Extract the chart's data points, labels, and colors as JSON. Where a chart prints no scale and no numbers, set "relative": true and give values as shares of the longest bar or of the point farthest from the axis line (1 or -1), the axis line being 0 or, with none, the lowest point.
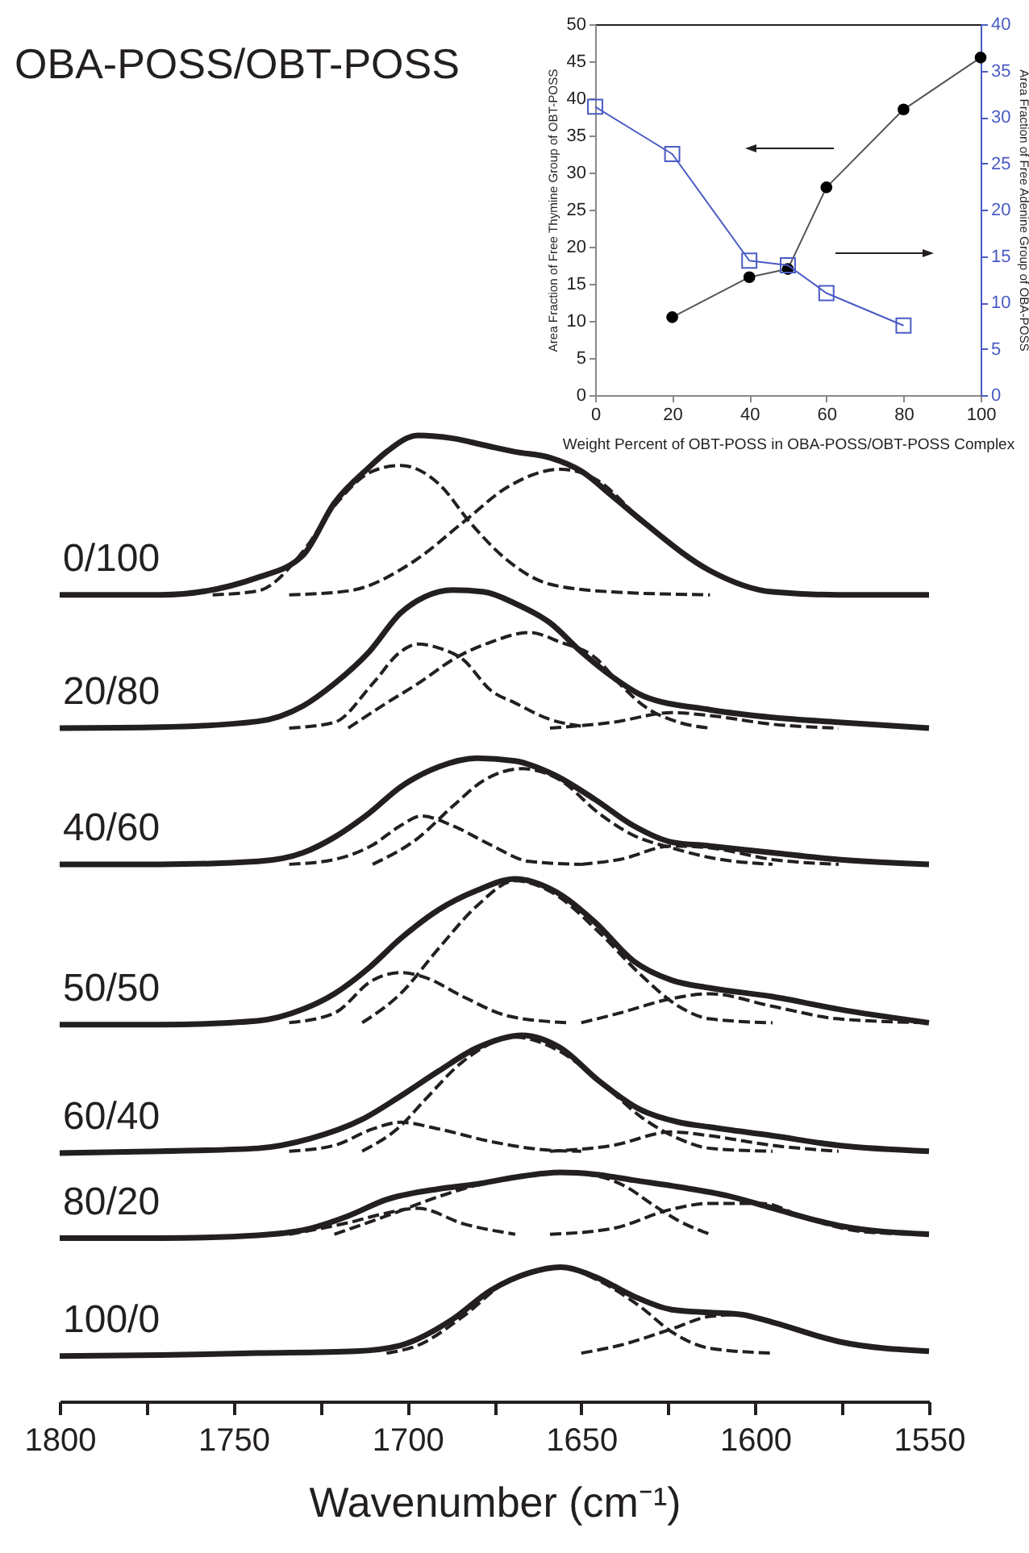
{
  "chart_data": [
    {
      "type": "line",
      "title": "OBA-POSS/OBT-POSS",
      "xlabel": "Wavenumber (cm⁻¹)",
      "relative": true,
      "xlim": [
        1800,
        1550
      ],
      "xticks": [
        1800,
        {
          "value": 1775,
          "label": null
        },
        1750,
        {
          "value": 1725,
          "label": null
        },
        1700,
        {
          "value": 1675,
          "label": null
        },
        1650,
        {
          "value": 1625,
          "label": null
        },
        1600,
        {
          "value": 1575,
          "label": null
        },
        1550
      ],
      "series": [
        {
          "name": "0/100",
          "color": "#231f20",
          "line_style": "solid",
          "x": [
            1800,
            1771,
            1743,
            1730,
            1721,
            1711,
            1706,
            1697,
            1687,
            1678,
            1669,
            1659,
            1650,
            1641,
            1632,
            1613,
            1595,
            1576,
            1550
          ],
          "values": [
            0.835,
            0.835,
            0.853,
            0.876,
            0.93,
            0.967,
            0.983,
            1,
            0.997,
            0.99,
            0.983,
            0.977,
            0.963,
            0.937,
            0.91,
            0.86,
            0.838,
            0.835,
            0.835
          ]
        },
        {
          "color": "#231f20",
          "line_style": "dashed",
          "x": [
            1756,
            1743,
            1730,
            1721,
            1710,
            1702,
            1691,
            1682,
            1672,
            1659,
            1641,
            1613
          ],
          "values": [
            0.835,
            0.839,
            0.88,
            0.927,
            0.963,
            0.969,
            0.95,
            0.91,
            0.873,
            0.846,
            0.838,
            0.835
          ]
        },
        {
          "color": "#231f20",
          "line_style": "dashed",
          "x": [
            1734,
            1717,
            1698,
            1684,
            1671,
            1656,
            1646,
            1632,
            1613,
            1595,
            1576
          ],
          "values": [
            0.835,
            0.839,
            0.87,
            0.91,
            0.947,
            0.965,
            0.955,
            0.91,
            0.86,
            0.838,
            0.835
          ]
        },
        {
          "name": "20/80",
          "color": "#231f20",
          "line_style": "solid",
          "x": [
            1800,
            1771,
            1743,
            1730,
            1721,
            1711,
            1702,
            1695,
            1687,
            1678,
            1669,
            1659,
            1650,
            1641,
            1632,
            1613,
            1595,
            1576,
            1550
          ],
          "values": [
            0.697,
            0.698,
            0.704,
            0.72,
            0.743,
            0.776,
            0.816,
            0.833,
            0.84,
            0.838,
            0.826,
            0.806,
            0.776,
            0.75,
            0.73,
            0.716,
            0.708,
            0.703,
            0.697
          ]
        },
        {
          "color": "#231f20",
          "line_style": "dashed",
          "x": [
            1734,
            1721,
            1710,
            1702,
            1697,
            1691,
            1684,
            1676,
            1669,
            1659,
            1650
          ],
          "values": [
            0.697,
            0.703,
            0.743,
            0.776,
            0.784,
            0.78,
            0.768,
            0.736,
            0.723,
            0.706,
            0.699
          ]
        },
        {
          "color": "#231f20",
          "line_style": "dashed",
          "x": [
            1717,
            1706,
            1697,
            1686,
            1676,
            1665,
            1656,
            1646,
            1639,
            1632,
            1622,
            1613
          ],
          "values": [
            0.697,
            0.723,
            0.743,
            0.77,
            0.786,
            0.796,
            0.786,
            0.77,
            0.743,
            0.72,
            0.703,
            0.697
          ]
        },
        {
          "color": "#231f20",
          "line_style": "dashed",
          "x": [
            1659,
            1641,
            1624,
            1613,
            1595,
            1576
          ],
          "values": [
            0.697,
            0.703,
            0.713,
            0.71,
            0.701,
            0.697
          ]
        },
        {
          "name": "40/60",
          "color": "#231f20",
          "line_style": "solid",
          "x": [
            1800,
            1771,
            1743,
            1730,
            1721,
            1711,
            1702,
            1691,
            1680,
            1669,
            1658,
            1646,
            1635,
            1624,
            1613,
            1595,
            1576,
            1550
          ],
          "values": [
            0.556,
            0.556,
            0.559,
            0.568,
            0.584,
            0.609,
            0.636,
            0.657,
            0.666,
            0.663,
            0.649,
            0.623,
            0.596,
            0.579,
            0.575,
            0.568,
            0.561,
            0.556
          ]
        },
        {
          "color": "#231f20",
          "line_style": "dashed",
          "x": [
            1734,
            1721,
            1710,
            1702,
            1696,
            1687,
            1676,
            1665,
            1650
          ],
          "values": [
            0.556,
            0.561,
            0.576,
            0.596,
            0.606,
            0.596,
            0.576,
            0.559,
            0.556
          ]
        },
        {
          "color": "#231f20",
          "line_style": "dashed",
          "x": [
            1710,
            1697,
            1687,
            1678,
            1667,
            1656,
            1645,
            1635,
            1624,
            1613,
            1595
          ],
          "values": [
            0.556,
            0.583,
            0.616,
            0.643,
            0.655,
            0.643,
            0.609,
            0.586,
            0.573,
            0.563,
            0.556
          ]
        },
        {
          "color": "#231f20",
          "line_style": "dashed",
          "x": [
            1650,
            1639,
            1624,
            1613,
            1595,
            1576
          ],
          "values": [
            0.556,
            0.561,
            0.575,
            0.573,
            0.561,
            0.556
          ]
        },
        {
          "name": "50/50",
          "color": "#231f20",
          "line_style": "solid",
          "x": [
            1800,
            1771,
            1743,
            1730,
            1721,
            1711,
            1702,
            1691,
            1680,
            1669,
            1658,
            1646,
            1635,
            1624,
            1613,
            1595,
            1576,
            1550
          ],
          "values": [
            0.39,
            0.39,
            0.394,
            0.406,
            0.422,
            0.449,
            0.479,
            0.509,
            0.529,
            0.541,
            0.529,
            0.496,
            0.456,
            0.436,
            0.428,
            0.419,
            0.406,
            0.392
          ]
        },
        {
          "color": "#231f20",
          "line_style": "dashed",
          "x": [
            1734,
            1721,
            1710,
            1702,
            1695,
            1684,
            1671,
            1654
          ],
          "values": [
            0.392,
            0.402,
            0.436,
            0.444,
            0.439,
            0.419,
            0.399,
            0.392
          ]
        },
        {
          "color": "#231f20",
          "line_style": "dashed",
          "x": [
            1713,
            1702,
            1691,
            1680,
            1669,
            1658,
            1645,
            1633,
            1622,
            1613,
            1595
          ],
          "values": [
            0.392,
            0.422,
            0.469,
            0.513,
            0.539,
            0.526,
            0.486,
            0.442,
            0.409,
            0.396,
            0.392
          ]
        },
        {
          "color": "#231f20",
          "line_style": "dashed",
          "x": [
            1650,
            1639,
            1624,
            1613,
            1595,
            1576,
            1550
          ],
          "values": [
            0.392,
            0.402,
            0.417,
            0.422,
            0.409,
            0.396,
            0.392
          ]
        },
        {
          "name": "60/40",
          "color": "#231f20",
          "line_style": "solid",
          "x": [
            1800,
            1771,
            1743,
            1728,
            1713,
            1702,
            1691,
            1680,
            1667,
            1656,
            1645,
            1633,
            1622,
            1613,
            1595,
            1576,
            1550
          ],
          "values": [
            0.257,
            0.259,
            0.262,
            0.272,
            0.292,
            0.316,
            0.342,
            0.366,
            0.379,
            0.366,
            0.332,
            0.302,
            0.289,
            0.284,
            0.275,
            0.265,
            0.259
          ]
        },
        {
          "color": "#231f20",
          "line_style": "dashed",
          "x": [
            1734,
            1721,
            1710,
            1702,
            1691,
            1676,
            1659,
            1650
          ],
          "values": [
            0.259,
            0.265,
            0.282,
            0.289,
            0.282,
            0.269,
            0.26,
            0.259
          ]
        },
        {
          "color": "#231f20",
          "line_style": "dashed",
          "x": [
            1713,
            1702,
            1695,
            1684,
            1669,
            1656,
            1643,
            1633,
            1622,
            1613,
            1595
          ],
          "values": [
            0.259,
            0.285,
            0.312,
            0.352,
            0.377,
            0.362,
            0.326,
            0.295,
            0.272,
            0.262,
            0.259
          ]
        },
        {
          "color": "#231f20",
          "line_style": "dashed",
          "x": [
            1659,
            1641,
            1624,
            1613,
            1595,
            1576
          ],
          "values": [
            0.259,
            0.265,
            0.279,
            0.275,
            0.265,
            0.259
          ]
        },
        {
          "name": "80/20",
          "color": "#231f20",
          "line_style": "solid",
          "x": [
            1800,
            1771,
            1743,
            1728,
            1717,
            1706,
            1691,
            1680,
            1669,
            1656,
            1646,
            1635,
            1622,
            1608,
            1595,
            1576,
            1550
          ],
          "values": [
            0.169,
            0.169,
            0.172,
            0.179,
            0.192,
            0.209,
            0.22,
            0.225,
            0.232,
            0.237,
            0.235,
            0.229,
            0.222,
            0.213,
            0.2,
            0.182,
            0.173
          ]
        },
        {
          "color": "#231f20",
          "line_style": "dashed",
          "x": [
            1734,
            1717,
            1706,
            1697,
            1684,
            1669
          ],
          "values": [
            0.173,
            0.185,
            0.195,
            0.2,
            0.184,
            0.173
          ]
        },
        {
          "color": "#231f20",
          "line_style": "dashed",
          "x": [
            1721,
            1706,
            1691,
            1680,
            1669,
            1656,
            1645,
            1637,
            1630,
            1622,
            1613
          ],
          "values": [
            0.173,
            0.192,
            0.212,
            0.224,
            0.232,
            0.237,
            0.233,
            0.222,
            0.205,
            0.187,
            0.173
          ]
        },
        {
          "color": "#231f20",
          "line_style": "dashed",
          "x": [
            1659,
            1641,
            1624,
            1613,
            1598,
            1585,
            1567,
            1550
          ],
          "values": [
            0.173,
            0.179,
            0.199,
            0.205,
            0.205,
            0.189,
            0.175,
            0.173
          ]
        },
        {
          "name": "100/0",
          "color": "#231f20",
          "line_style": "solid",
          "x": [
            1800,
            1771,
            1743,
            1715,
            1702,
            1687,
            1676,
            1665,
            1656,
            1646,
            1635,
            1624,
            1613,
            1604,
            1595,
            1576,
            1550
          ],
          "values": [
            0.047,
            0.048,
            0.05,
            0.052,
            0.058,
            0.085,
            0.115,
            0.133,
            0.139,
            0.129,
            0.109,
            0.095,
            0.092,
            0.09,
            0.082,
            0.062,
            0.052
          ]
        },
        {
          "color": "#231f20",
          "line_style": "dashed",
          "x": [
            1706,
            1697,
            1684,
            1671,
            1656,
            1645,
            1633,
            1624,
            1613,
            1595
          ],
          "values": [
            0.05,
            0.058,
            0.088,
            0.125,
            0.139,
            0.125,
            0.098,
            0.072,
            0.055,
            0.05
          ]
        },
        {
          "color": "#231f20",
          "line_style": "dashed",
          "x": [
            1650,
            1639,
            1624,
            1613,
            1604,
            1595,
            1576,
            1550
          ],
          "values": [
            0.05,
            0.058,
            0.075,
            0.088,
            0.09,
            0.082,
            0.062,
            0.052
          ]
        }
      ]
    },
    {
      "type": "line",
      "xlabel": "Weight Percent of OBT-POSS in OBA-POSS/OBT-POSS Complex",
      "ylabel": "Area Fraction of Free Thymine Group of OBT-POSS",
      "y2label": "Area Fraction of Free Adenine Group of OBA-POSS",
      "xlim": [
        0,
        100
      ],
      "xticks": [
        0,
        20,
        40,
        60,
        80,
        100
      ],
      "ylim": [
        0,
        50
      ],
      "yticks": [
        0,
        5,
        10,
        15,
        20,
        25,
        30,
        35,
        40,
        45,
        50
      ],
      "y2lim": [
        0,
        40
      ],
      "y2ticks": [
        0,
        5,
        10,
        15,
        20,
        25,
        30,
        35,
        40
      ],
      "series": [
        {
          "color": "#000000",
          "marker": "circle",
          "x": [
            20,
            40,
            50,
            60,
            80,
            100
          ],
          "values": [
            10.5,
            15.9,
            17.0,
            28.0,
            38.5,
            45.5
          ]
        },
        {
          "color": "#4a5bc4",
          "marker": "square",
          "axis": "y2",
          "x": [
            0,
            20,
            40,
            50,
            60,
            80
          ],
          "values": [
            31.1,
            26.0,
            14.5,
            14.0,
            11.0,
            7.5
          ]
        }
      ]
    }
  ]
}
